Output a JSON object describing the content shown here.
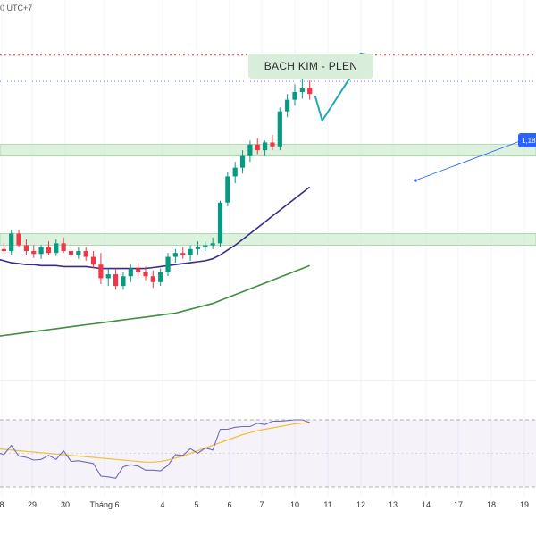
{
  "header": {
    "timezone_text": "0 UTC+7"
  },
  "annotation": {
    "title": "BẠCH KIM - PLEN"
  },
  "price_tag": {
    "label": "1,18"
  },
  "colors": {
    "up": "#089981",
    "down": "#f23645",
    "ma_fast": "#3c2a88",
    "ma_slow": "#3f8f3f",
    "rsi": "#6b6bb5",
    "rsi_signal": "#f0c040",
    "zone": "#cdeccf",
    "arrow": "#26a6b8",
    "resistance": "#f23645",
    "trend": "#2962ff"
  },
  "chart_data": {
    "type": "candlestick",
    "x_tick_labels": [
      "8",
      "29",
      "30",
      "Tháng 6",
      "4",
      "5",
      "6",
      "7",
      "10",
      "11",
      "12",
      "13",
      "14",
      "17",
      "18",
      "19"
    ],
    "candles": [
      {
        "o": 1012,
        "h": 1018,
        "l": 1006,
        "c": 1010
      },
      {
        "o": 1010,
        "h": 1016,
        "l": 1005,
        "c": 1008
      },
      {
        "o": 1008,
        "h": 1030,
        "l": 1004,
        "c": 1026
      },
      {
        "o": 1026,
        "h": 1030,
        "l": 1012,
        "c": 1014
      },
      {
        "o": 1014,
        "h": 1020,
        "l": 1004,
        "c": 1008
      },
      {
        "o": 1008,
        "h": 1014,
        "l": 1001,
        "c": 1005
      },
      {
        "o": 1005,
        "h": 1014,
        "l": 1000,
        "c": 1012
      },
      {
        "o": 1012,
        "h": 1018,
        "l": 1004,
        "c": 1006
      },
      {
        "o": 1006,
        "h": 1020,
        "l": 1003,
        "c": 1016
      },
      {
        "o": 1016,
        "h": 1022,
        "l": 1006,
        "c": 1008
      },
      {
        "o": 1008,
        "h": 1012,
        "l": 1000,
        "c": 1004
      },
      {
        "o": 1004,
        "h": 1012,
        "l": 1000,
        "c": 1008
      },
      {
        "o": 1008,
        "h": 1012,
        "l": 998,
        "c": 1002
      },
      {
        "o": 1002,
        "h": 1008,
        "l": 990,
        "c": 994
      },
      {
        "o": 994,
        "h": 1006,
        "l": 974,
        "c": 980
      },
      {
        "o": 980,
        "h": 990,
        "l": 972,
        "c": 984
      },
      {
        "o": 984,
        "h": 990,
        "l": 968,
        "c": 972
      },
      {
        "o": 972,
        "h": 986,
        "l": 968,
        "c": 982
      },
      {
        "o": 982,
        "h": 994,
        "l": 976,
        "c": 990
      },
      {
        "o": 990,
        "h": 996,
        "l": 982,
        "c": 986
      },
      {
        "o": 986,
        "h": 992,
        "l": 978,
        "c": 982
      },
      {
        "o": 982,
        "h": 988,
        "l": 970,
        "c": 976
      },
      {
        "o": 976,
        "h": 990,
        "l": 972,
        "c": 986
      },
      {
        "o": 986,
        "h": 1006,
        "l": 982,
        "c": 1002
      },
      {
        "o": 1002,
        "h": 1010,
        "l": 996,
        "c": 1006
      },
      {
        "o": 1006,
        "h": 1012,
        "l": 1000,
        "c": 1004
      },
      {
        "o": 1004,
        "h": 1014,
        "l": 998,
        "c": 1010
      },
      {
        "o": 1010,
        "h": 1018,
        "l": 1004,
        "c": 1012
      },
      {
        "o": 1012,
        "h": 1018,
        "l": 1008,
        "c": 1014
      },
      {
        "o": 1014,
        "h": 1022,
        "l": 1010,
        "c": 1016
      },
      {
        "o": 1016,
        "h": 1060,
        "l": 1012,
        "c": 1058
      },
      {
        "o": 1058,
        "h": 1090,
        "l": 1054,
        "c": 1085
      },
      {
        "o": 1085,
        "h": 1100,
        "l": 1078,
        "c": 1094
      },
      {
        "o": 1094,
        "h": 1112,
        "l": 1088,
        "c": 1106
      },
      {
        "o": 1106,
        "h": 1122,
        "l": 1100,
        "c": 1118
      },
      {
        "o": 1118,
        "h": 1124,
        "l": 1108,
        "c": 1112
      },
      {
        "o": 1112,
        "h": 1122,
        "l": 1106,
        "c": 1120
      },
      {
        "o": 1120,
        "h": 1128,
        "l": 1112,
        "c": 1116
      },
      {
        "o": 1116,
        "h": 1156,
        "l": 1112,
        "c": 1152
      },
      {
        "o": 1152,
        "h": 1170,
        "l": 1146,
        "c": 1164
      },
      {
        "o": 1164,
        "h": 1180,
        "l": 1158,
        "c": 1172
      },
      {
        "o": 1172,
        "h": 1186,
        "l": 1165,
        "c": 1176
      },
      {
        "o": 1176,
        "h": 1184,
        "l": 1164,
        "c": 1170
      }
    ],
    "ma_fast": [
      1000,
      998,
      996,
      995,
      994,
      994,
      993,
      993,
      993,
      992,
      992,
      992,
      992,
      991,
      990,
      990,
      990,
      990,
      990,
      990,
      990,
      991,
      992,
      993,
      994,
      995,
      996,
      997,
      998,
      1000,
      1004,
      1009,
      1014,
      1020,
      1026,
      1032,
      1038,
      1044,
      1050,
      1056,
      1062,
      1068,
      1074
    ],
    "ma_slow": [
      920,
      921,
      922,
      923,
      924,
      925,
      926,
      927,
      928,
      929,
      930,
      931,
      932,
      933,
      934,
      935,
      936,
      937,
      938,
      939,
      940,
      941,
      942,
      943,
      944,
      946,
      948,
      950,
      952,
      954,
      957,
      960,
      963,
      966,
      969,
      972,
      975,
      978,
      981,
      984,
      987,
      990,
      993
    ],
    "rsi": [
      52,
      48,
      62,
      46,
      44,
      40,
      41,
      47,
      41,
      54,
      38,
      39,
      37,
      35,
      16,
      15,
      13,
      30,
      33,
      31,
      25,
      25,
      24,
      32,
      48,
      47,
      57,
      50,
      58,
      55,
      86,
      86,
      89,
      90,
      90,
      95,
      93,
      98,
      98,
      99,
      100,
      100,
      96
    ],
    "rsi_signal": [
      57,
      56,
      55,
      54,
      53,
      52,
      51,
      50,
      49,
      48,
      47,
      46,
      45,
      44,
      43,
      42,
      41,
      40,
      39,
      38,
      37,
      37,
      38,
      40,
      43,
      46,
      50,
      54,
      58,
      62,
      66,
      70,
      74,
      78,
      81,
      84,
      86,
      88,
      90,
      92,
      94,
      95,
      96
    ],
    "resistance_level": 1210,
    "support_zones": [
      [
        1106,
        1118
      ],
      [
        1014,
        1026
      ]
    ]
  }
}
